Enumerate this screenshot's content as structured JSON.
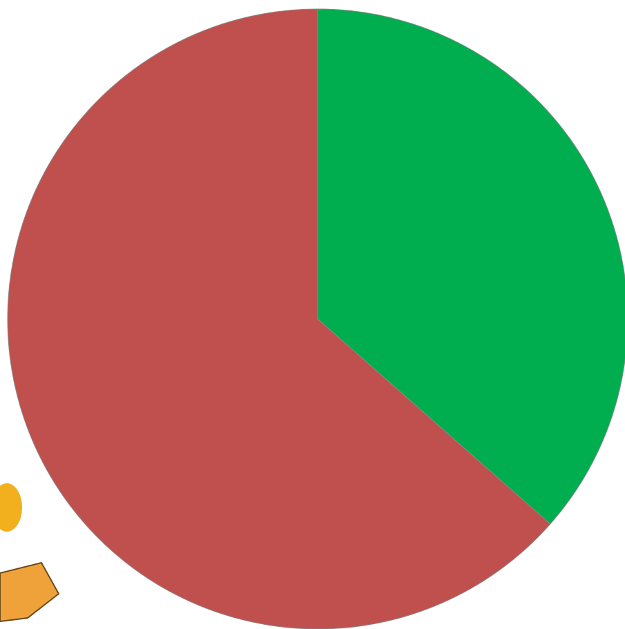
{
  "chart_data": {
    "type": "pie",
    "values": [
      36.5,
      63.5
    ],
    "colors": [
      "#00ad4f",
      "#c0504d"
    ]
  }
}
